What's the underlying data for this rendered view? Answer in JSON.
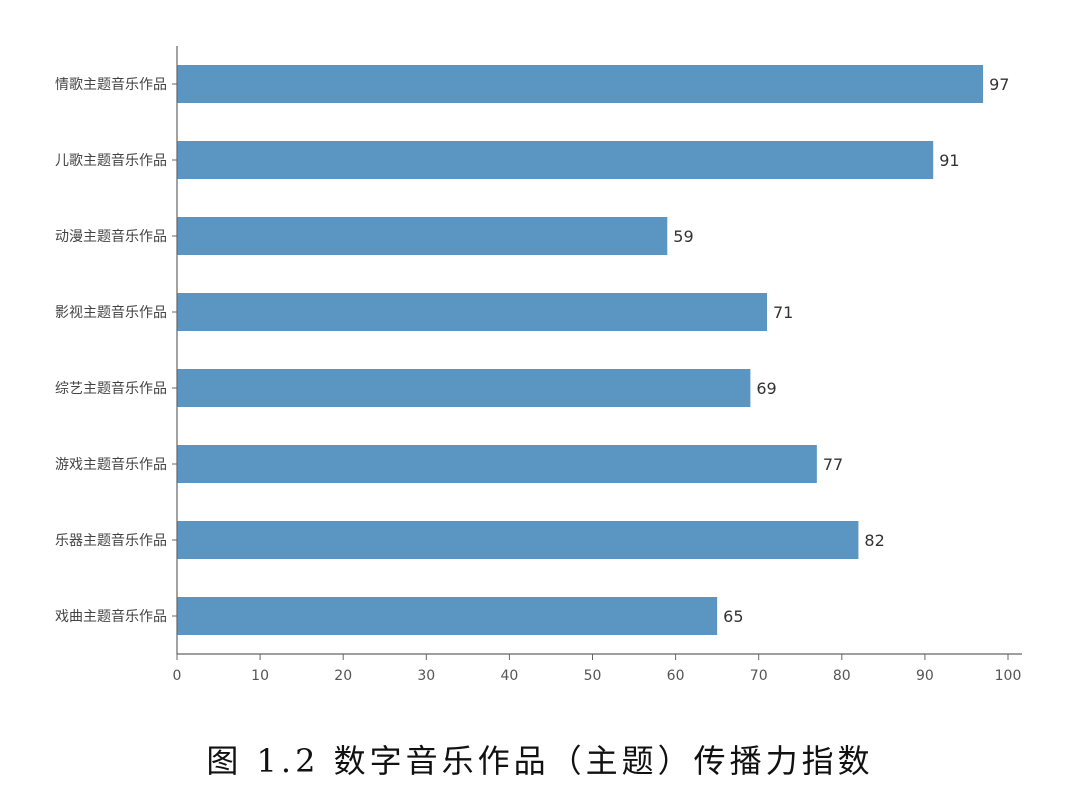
{
  "chart_data": {
    "type": "bar",
    "orientation": "horizontal",
    "categories": [
      "情歌主题音乐作品",
      "儿歌主题音乐作品",
      "动漫主题音乐作品",
      "影视主题音乐作品",
      "综艺主题音乐作品",
      "游戏主题音乐作品",
      "乐器主题音乐作品",
      "戏曲主题音乐作品"
    ],
    "values": [
      97,
      91,
      59,
      71,
      69,
      77,
      82,
      65
    ],
    "xlim": [
      0,
      100
    ],
    "xticks": [
      0,
      10,
      20,
      30,
      40,
      50,
      60,
      70,
      80,
      90,
      100
    ],
    "bar_color": "#5b96c3",
    "grid": false,
    "data_labels": true
  },
  "caption": "图 1.2 数字音乐作品（主题）传播力指数"
}
